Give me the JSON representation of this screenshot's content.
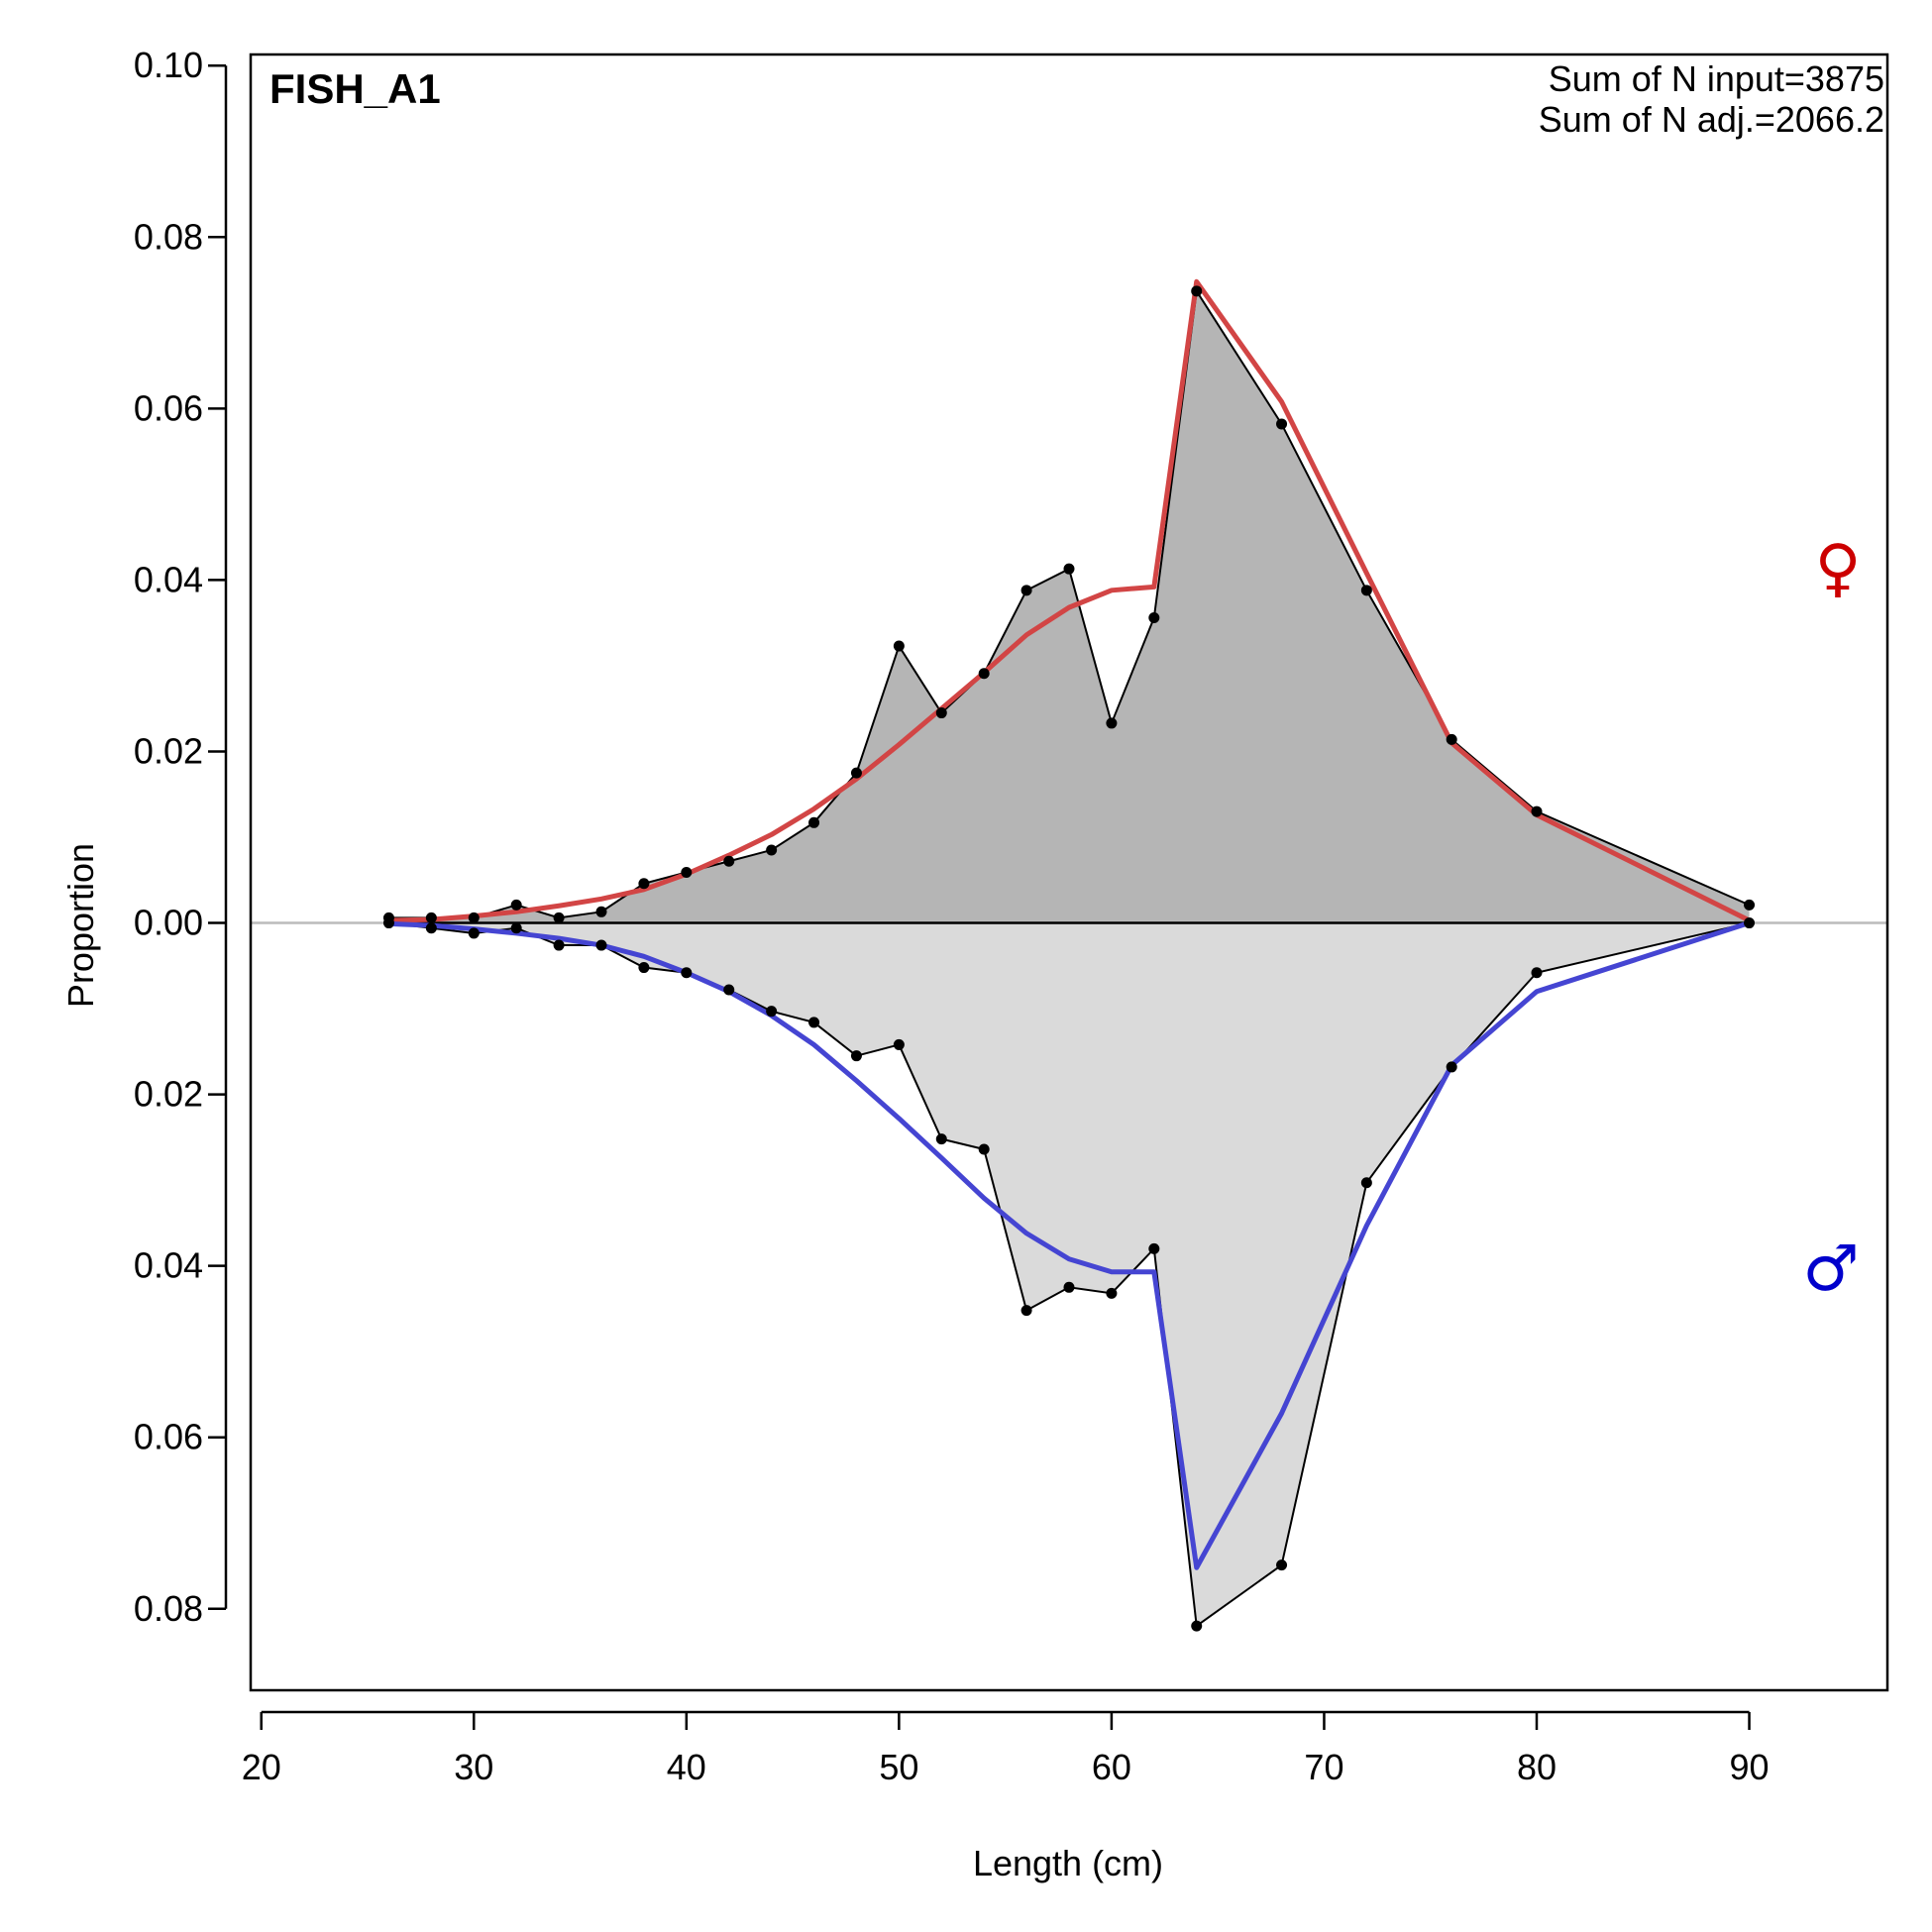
{
  "chart_data": {
    "type": "area",
    "title": "FISH_A1",
    "xlabel": "Length (cm)",
    "ylabel": "Proportion",
    "xlim": [
      19.5,
      96.5
    ],
    "ylim": [
      -0.0895,
      0.1013
    ],
    "x_ticks": [
      20,
      30,
      40,
      50,
      60,
      70,
      80,
      90
    ],
    "x_tick_labels": [
      "20",
      "30",
      "40",
      "50",
      "60",
      "70",
      "80",
      "90"
    ],
    "y_ticks": [
      0.1,
      0.08,
      0.06,
      0.04,
      0.02,
      0.0,
      -0.02,
      -0.04,
      -0.06,
      -0.08
    ],
    "y_tick_labels": [
      "0.10",
      "0.08",
      "0.06",
      "0.04",
      "0.02",
      "0.00",
      "0.02",
      "0.04",
      "0.06",
      "0.08"
    ],
    "annotations": [
      "Sum of N input=3875",
      "Sum of N adj.=2066.2"
    ],
    "sex_symbols": {
      "female": "♀",
      "male": "♂",
      "female_color": "#CC0000",
      "male_color": "#0000CC"
    },
    "grid": false,
    "zero_line_color": "#BBBBBB",
    "x": [
      26,
      28,
      30,
      32,
      34,
      36,
      38,
      40,
      42,
      44,
      46,
      48,
      50,
      52,
      54,
      56,
      58,
      60,
      62,
      64,
      68,
      72,
      76,
      80,
      90
    ],
    "series": [
      {
        "role": "female_observed",
        "fill": "#B5B5B5",
        "values": [
          0.0006,
          0.0006,
          0.0006,
          0.0021,
          0.0006,
          0.0013,
          0.0046,
          0.0059,
          0.0072,
          0.0085,
          0.0117,
          0.0175,
          0.0323,
          0.0245,
          0.0291,
          0.0388,
          0.0413,
          0.0233,
          0.0356,
          0.0737,
          0.0582,
          0.0388,
          0.0214,
          0.013,
          0.0021
        ]
      },
      {
        "role": "female_expected",
        "color": "#D24545",
        "values": [
          0.0003,
          0.0004,
          0.0008,
          0.0013,
          0.002,
          0.0028,
          0.0039,
          0.0057,
          0.0079,
          0.0103,
          0.0133,
          0.0168,
          0.0208,
          0.025,
          0.0292,
          0.0336,
          0.0368,
          0.0388,
          0.0392,
          0.0748,
          0.0608,
          0.0408,
          0.021,
          0.0126,
          0.0003
        ]
      },
      {
        "role": "male_observed",
        "fill": "#DADADA",
        "values": [
          0.0,
          -0.0006,
          -0.0012,
          -0.0006,
          -0.0026,
          -0.0026,
          -0.0052,
          -0.0058,
          -0.0078,
          -0.0103,
          -0.0116,
          -0.0155,
          -0.0142,
          -0.0252,
          -0.0264,
          -0.0452,
          -0.0425,
          -0.0432,
          -0.038,
          -0.082,
          -0.0749,
          -0.0303,
          -0.0168,
          -0.0058,
          0.0
        ]
      },
      {
        "role": "male_expected",
        "color": "#4545D2",
        "values": [
          -0.0001,
          -0.0003,
          -0.0007,
          -0.0012,
          -0.0018,
          -0.0026,
          -0.0039,
          -0.0058,
          -0.008,
          -0.0108,
          -0.0142,
          -0.0184,
          -0.0228,
          -0.0274,
          -0.0321,
          -0.0362,
          -0.0392,
          -0.0407,
          -0.0407,
          -0.0752,
          -0.0572,
          -0.0353,
          -0.0166,
          -0.008,
          0.0
        ]
      }
    ]
  }
}
